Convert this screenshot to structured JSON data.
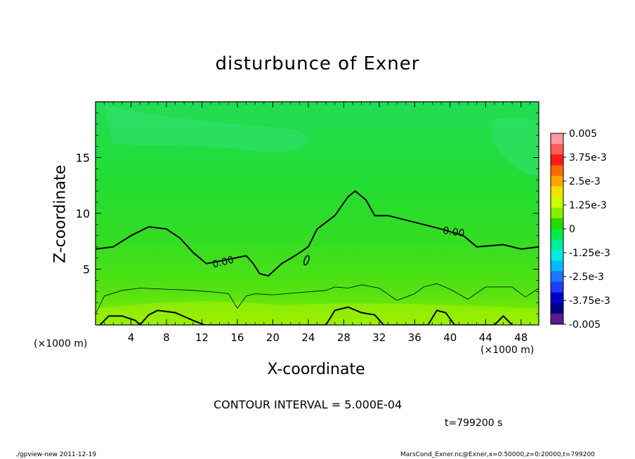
{
  "title": "disturbunce of Exner",
  "chart_data": {
    "type": "heatmap",
    "title": "disturbunce of Exner",
    "xlabel": "X-coordinate",
    "ylabel": "Z-coordinate",
    "x_unit": "(×1000 m)",
    "z_unit": "(×1000 m)",
    "xlim": [
      0,
      50
    ],
    "ylim": [
      0,
      20
    ],
    "x_ticks": [
      4,
      8,
      12,
      16,
      20,
      24,
      28,
      32,
      36,
      40,
      44,
      48
    ],
    "y_ticks": [
      5,
      10,
      15
    ],
    "colorbar": {
      "range": [
        -0.005,
        0.005
      ],
      "labels": [
        "0.005",
        "3.75e-3",
        "2.5e-3",
        "1.25e-3",
        "0",
        "-1.25e-3",
        "-2.5e-3",
        "-3.75e-3",
        "-0.005"
      ],
      "colors": [
        "#ff9aa0",
        "#ff5a5a",
        "#ff1a1a",
        "#ff6a00",
        "#ffa500",
        "#f2e200",
        "#ccff00",
        "#88ee00",
        "#22dd00",
        "#00ee44",
        "#00ee99",
        "#00eedd",
        "#00bbff",
        "#1a77ff",
        "#1a3dff",
        "#0000cc",
        "#000088",
        "#5b1a8f"
      ]
    },
    "contour_interval": "5.000E-04",
    "contour_labels": [
      "0.00",
      "0.00",
      "0.00",
      "0"
    ],
    "contour_zero_line": {
      "x": [
        0,
        2,
        4,
        6,
        8,
        9.5,
        11,
        12.5,
        14.5,
        17,
        17.8,
        18.5,
        19.5,
        21,
        22.5,
        24,
        25,
        27,
        28.5,
        29.3,
        30.5,
        31.5,
        33,
        36,
        39,
        41.5,
        43,
        46,
        48,
        50
      ],
      "z": [
        6.8,
        7.0,
        8.0,
        8.8,
        8.6,
        7.8,
        6.5,
        5.5,
        5.8,
        6.2,
        5.5,
        4.6,
        4.4,
        5.5,
        6.2,
        7.0,
        8.6,
        9.8,
        11.5,
        12.0,
        11.2,
        9.8,
        9.8,
        9.2,
        8.6,
        8.0,
        7.0,
        7.2,
        6.8,
        7.0
      ]
    },
    "contour_lower_line": {
      "x": [
        0,
        1,
        3,
        5,
        8,
        11,
        14,
        15,
        16,
        17,
        18,
        20,
        23,
        26,
        27,
        28.5,
        30,
        32,
        34,
        36,
        37,
        38.5,
        40,
        42,
        44,
        47,
        48.5,
        50
      ],
      "z": [
        1.0,
        2.6,
        3.1,
        3.3,
        3.2,
        3.1,
        2.9,
        2.8,
        1.5,
        2.6,
        2.8,
        2.7,
        2.9,
        3.1,
        3.4,
        3.3,
        3.6,
        3.3,
        2.2,
        2.8,
        3.4,
        3.7,
        3.2,
        2.3,
        3.4,
        3.4,
        2.5,
        3.3
      ]
    },
    "contour_bottom_line": {
      "x": [
        0.5,
        1.5,
        3,
        4.5,
        5,
        6,
        7,
        9,
        11,
        12.3,
        14,
        26,
        27,
        28.5,
        30,
        31.5,
        32.5,
        37.5,
        38.5,
        39.5,
        40.5,
        45,
        46,
        47
      ],
      "z": [
        0,
        0.8,
        0.8,
        0.4,
        0,
        0.9,
        1.3,
        1.1,
        0.4,
        0,
        0,
        0,
        1.3,
        1.6,
        1.1,
        0.9,
        0,
        0,
        1.3,
        1.1,
        0,
        0,
        0.8,
        0
      ]
    },
    "contour_loop": {
      "x": 23.8,
      "z": 5.8
    }
  },
  "info": {
    "contour_interval_text": "CONTOUR INTERVAL = 5.000E-04",
    "time_text": "t=799200 s",
    "footer_left": "./gpview-new   2011-12-19",
    "footer_right": "MarsCond_Exner.nc@Exner,x=0:50000,z=0:20000,t=799200"
  }
}
